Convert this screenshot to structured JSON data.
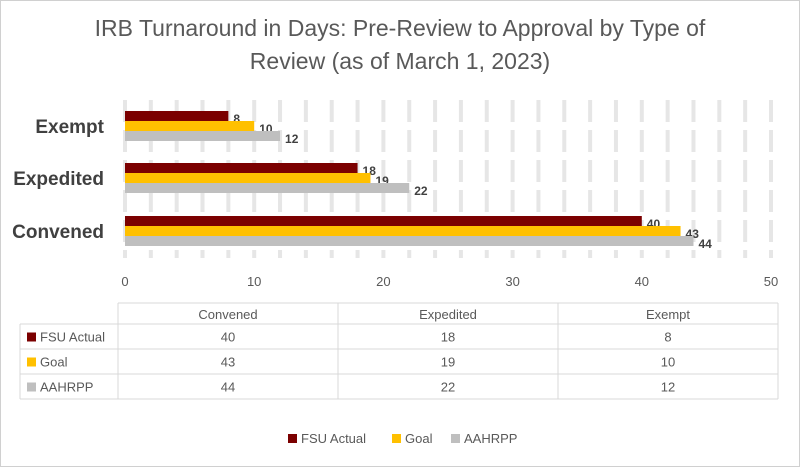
{
  "chart_data": {
    "type": "bar",
    "orientation": "horizontal",
    "title_lines": [
      "IRB Turnaround in Days: Pre-Review to Approval by Type of",
      "Review (as of March 1, 2023)"
    ],
    "categories": [
      "Exempt",
      "Expedited",
      "Convened"
    ],
    "series": [
      {
        "name": "FSU Actual",
        "color": "#7b0000",
        "values": [
          8,
          18,
          40
        ]
      },
      {
        "name": "Goal",
        "color": "#ffc000",
        "values": [
          10,
          19,
          43
        ]
      },
      {
        "name": "AAHRPP",
        "color": "#bfbfbf",
        "values": [
          12,
          22,
          44
        ]
      }
    ],
    "xlim": [
      0,
      50
    ],
    "x_ticks": [
      0,
      10,
      20,
      30,
      40,
      50
    ],
    "grid": "vertical dashed",
    "legend_position": "bottom",
    "data_table": {
      "columns": [
        "Convened",
        "Expedited",
        "Exempt"
      ],
      "rows": [
        {
          "name": "FSU Actual",
          "color": "#7b0000",
          "values": [
            40,
            18,
            8
          ]
        },
        {
          "name": "Goal",
          "color": "#ffc000",
          "values": [
            43,
            19,
            10
          ]
        },
        {
          "name": "AAHRPP",
          "color": "#bfbfbf",
          "values": [
            44,
            22,
            12
          ]
        }
      ]
    }
  }
}
